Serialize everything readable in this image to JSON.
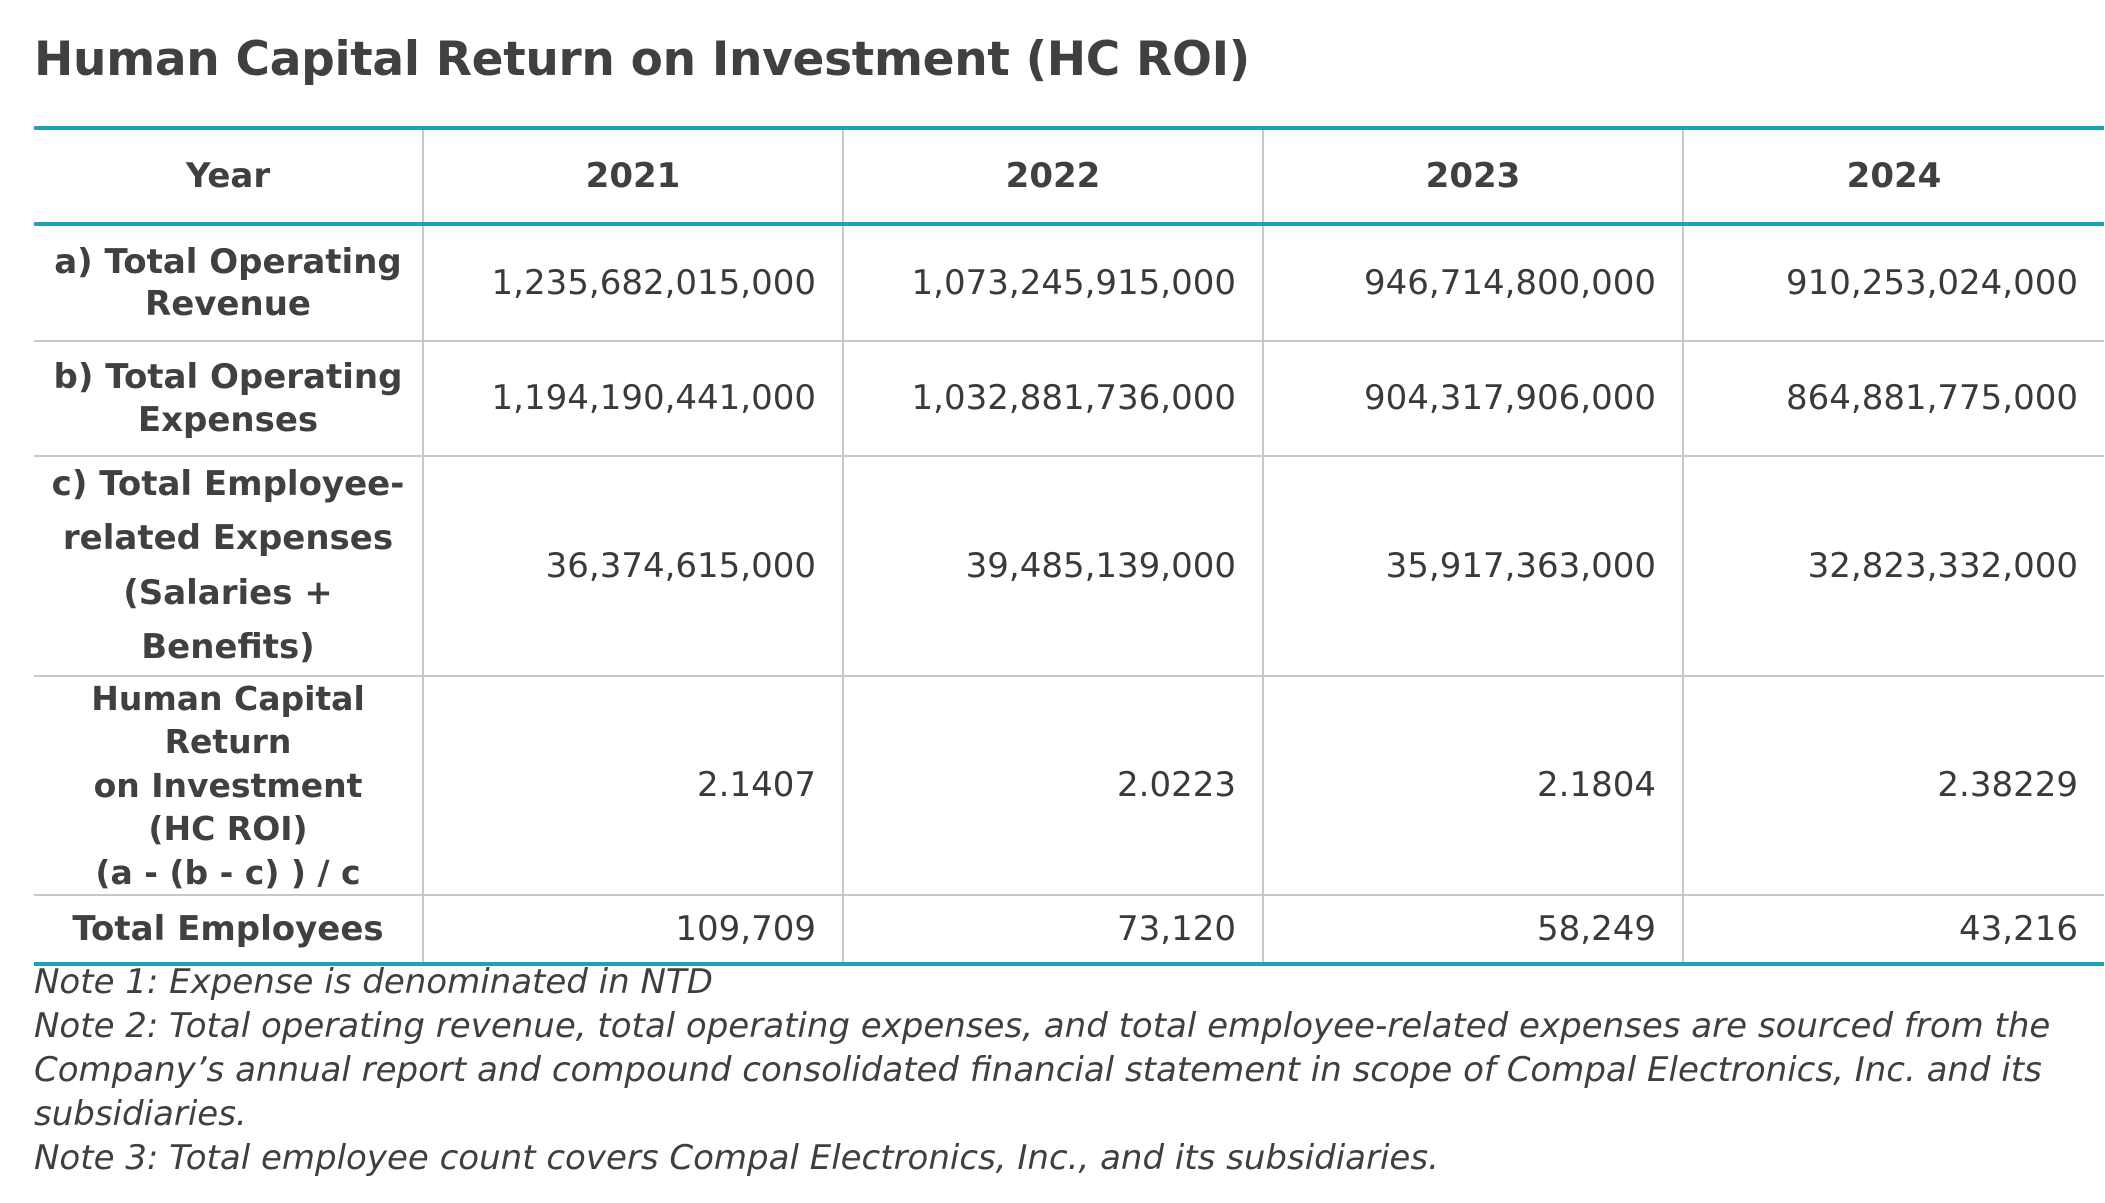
{
  "title": "Human Capital Return on Investment (HC ROI)",
  "table": {
    "header": {
      "label": "Year",
      "years": [
        "2021",
        "2022",
        "2023",
        "2024"
      ]
    },
    "rows": [
      {
        "label": "a) Total Operating Revenue",
        "values": [
          "1,235,682,015,000",
          "1,073,245,915,000",
          "946,714,800,000",
          "910,253,024,000"
        ]
      },
      {
        "label": "b) Total Operating Expenses",
        "values": [
          "1,194,190,441,000",
          "1,032,881,736,000",
          "904,317,906,000",
          "864,881,775,000"
        ]
      },
      {
        "label_lines": [
          "c) Total Employee-",
          "related Expenses",
          "(Salaries + Benefits)"
        ],
        "values": [
          "36,374,615,000",
          "39,485,139,000",
          "35,917,363,000",
          "32,823,332,000"
        ]
      },
      {
        "label_lines": [
          "Human Capital Return",
          "on Investment",
          "(HC ROI)",
          "(a - (b - c) ) / c"
        ],
        "values": [
          "2.1407",
          "2.0223",
          "2.1804",
          "2.38229"
        ]
      },
      {
        "label": "Total Employees",
        "values": [
          "109,709",
          "73,120",
          "58,249",
          "43,216"
        ]
      }
    ]
  },
  "notes": {
    "note1": "Note 1: Expense is denominated in NTD",
    "note2": "Note 2: Total operating revenue, total operating expenses, and total employee-related expenses are sourced from the Company’s annual report and compound consolidated financial statement in scope of Compal Electronics, Inc. and its subsidiaries.",
    "note3": "Note 3: Total employee count covers Compal Electronics, Inc., and its subsidiaries."
  },
  "colors": {
    "accent_rule": "#1ca3b6",
    "grid": "#c8c8c8",
    "text": "#404040"
  }
}
